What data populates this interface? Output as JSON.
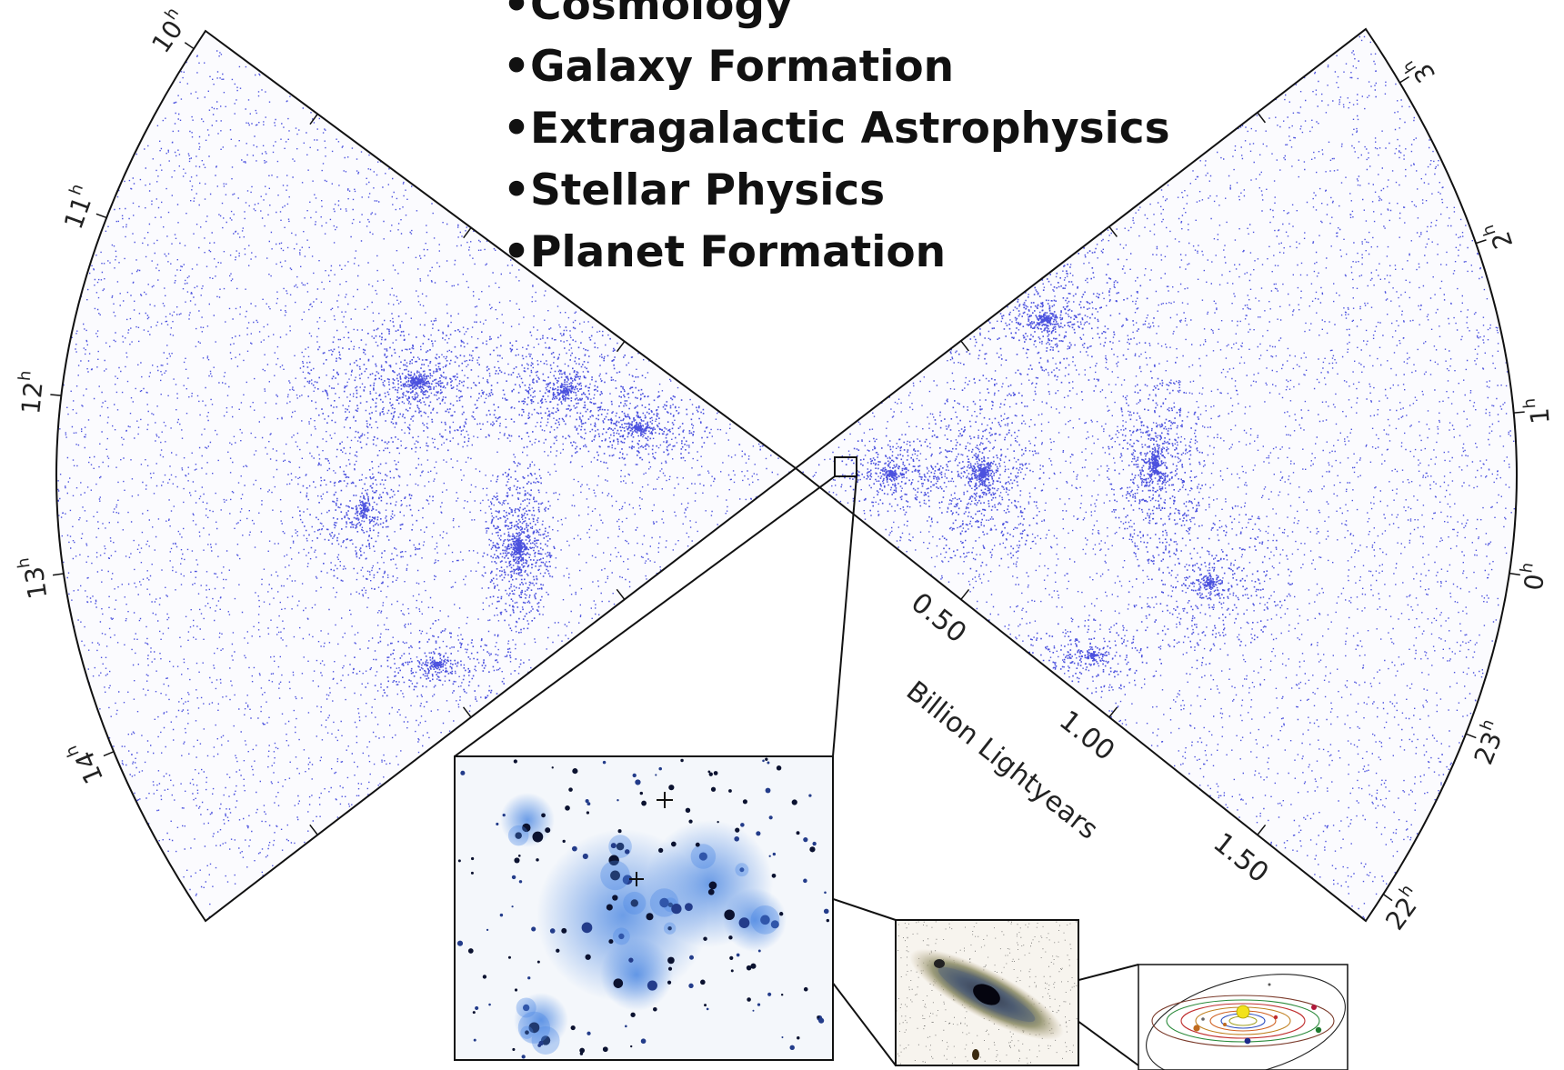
{
  "bullets": [
    "Cosmology",
    "Galaxy Formation",
    "Extragalactic Astrophysics",
    "Stellar Physics",
    "Planet Formation"
  ],
  "left_wedge": {
    "hour_labels": [
      "10h",
      "11h",
      "12h",
      "13h",
      "14h"
    ]
  },
  "right_wedge": {
    "hour_labels": [
      "3h",
      "2h",
      "1h",
      "0h",
      "23h",
      "22h"
    ],
    "distance_labels": [
      "0.50",
      "1.00",
      "1.50"
    ],
    "distance_axis_title": "Billion Lightyears"
  },
  "colors": {
    "galaxy_points": "#2b33d8",
    "frame": "#111111",
    "cluster_glow": "#3f7fe0"
  },
  "insets": [
    {
      "name": "galaxy-cluster-image"
    },
    {
      "name": "spiral-galaxy-image"
    },
    {
      "name": "solar-system-diagram"
    }
  ]
}
